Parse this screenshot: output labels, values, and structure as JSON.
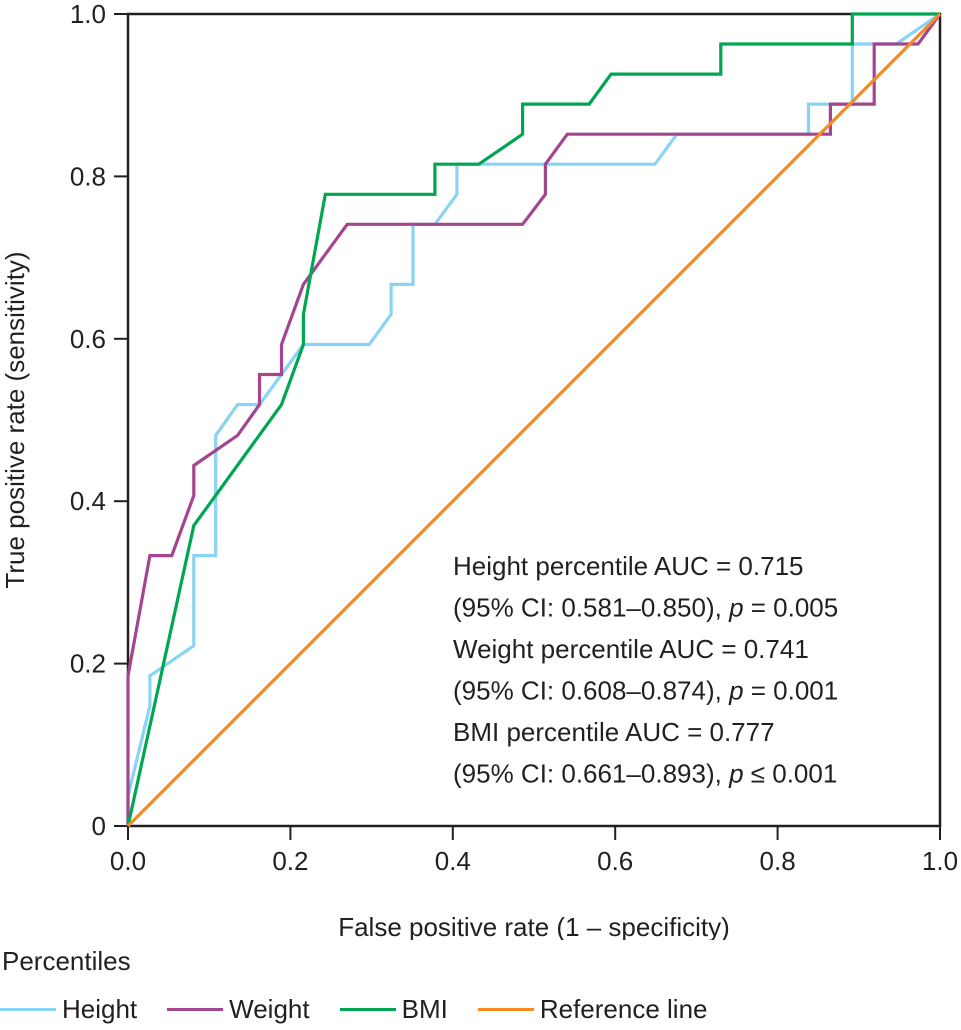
{
  "chart_data": {
    "type": "line",
    "title": "",
    "xlabel": "False positive rate (1 – specificity)",
    "ylabel": "True positive rate (sensitivity)",
    "xlim": [
      0,
      1
    ],
    "ylim": [
      0,
      1
    ],
    "grid": false,
    "x_ticks": [
      "0.0",
      "0.2",
      "0.4",
      "0.6",
      "0.8",
      "1.0"
    ],
    "x_tick_values": [
      0,
      0.2,
      0.4,
      0.6,
      0.8,
      1.0
    ],
    "y_ticks": [
      "0",
      "0.2",
      "0.4",
      "0.6",
      "0.8",
      "1.0"
    ],
    "y_tick_values": [
      0,
      0.2,
      0.4,
      0.6,
      0.8,
      1.0
    ],
    "legend_title": "Percentiles",
    "legend_position": "bottom",
    "series": [
      {
        "name": "Height",
        "color": "#89d3f3",
        "points": [
          [
            0,
            0
          ],
          [
            0,
            0.037
          ],
          [
            0.027,
            0.148
          ],
          [
            0.027,
            0.185
          ],
          [
            0.081,
            0.222
          ],
          [
            0.081,
            0.333
          ],
          [
            0.108,
            0.333
          ],
          [
            0.108,
            0.481
          ],
          [
            0.135,
            0.519
          ],
          [
            0.162,
            0.519
          ],
          [
            0.189,
            0.556
          ],
          [
            0.216,
            0.593
          ],
          [
            0.297,
            0.593
          ],
          [
            0.324,
            0.63
          ],
          [
            0.324,
            0.667
          ],
          [
            0.351,
            0.667
          ],
          [
            0.351,
            0.741
          ],
          [
            0.378,
            0.741
          ],
          [
            0.405,
            0.778
          ],
          [
            0.405,
            0.815
          ],
          [
            0.649,
            0.815
          ],
          [
            0.676,
            0.852
          ],
          [
            0.838,
            0.852
          ],
          [
            0.838,
            0.889
          ],
          [
            0.892,
            0.889
          ],
          [
            0.892,
            0.963
          ],
          [
            0.919,
            0.963
          ],
          [
            0.946,
            0.963
          ],
          [
            1,
            1
          ]
        ]
      },
      {
        "name": "Weight",
        "color": "#a3468f",
        "points": [
          [
            0,
            0
          ],
          [
            0,
            0.185
          ],
          [
            0.027,
            0.333
          ],
          [
            0.054,
            0.333
          ],
          [
            0.081,
            0.407
          ],
          [
            0.081,
            0.444
          ],
          [
            0.135,
            0.481
          ],
          [
            0.162,
            0.519
          ],
          [
            0.162,
            0.556
          ],
          [
            0.189,
            0.556
          ],
          [
            0.189,
            0.593
          ],
          [
            0.216,
            0.667
          ],
          [
            0.27,
            0.741
          ],
          [
            0.486,
            0.741
          ],
          [
            0.514,
            0.778
          ],
          [
            0.514,
            0.815
          ],
          [
            0.541,
            0.852
          ],
          [
            0.865,
            0.852
          ],
          [
            0.865,
            0.889
          ],
          [
            0.919,
            0.889
          ],
          [
            0.919,
            0.963
          ],
          [
            0.973,
            0.963
          ],
          [
            1,
            1
          ]
        ]
      },
      {
        "name": "BMI",
        "color": "#00a651",
        "points": [
          [
            0,
            0
          ],
          [
            0.081,
            0.37
          ],
          [
            0.189,
            0.519
          ],
          [
            0.216,
            0.593
          ],
          [
            0.216,
            0.63
          ],
          [
            0.243,
            0.778
          ],
          [
            0.378,
            0.778
          ],
          [
            0.378,
            0.815
          ],
          [
            0.432,
            0.815
          ],
          [
            0.486,
            0.852
          ],
          [
            0.486,
            0.889
          ],
          [
            0.568,
            0.889
          ],
          [
            0.595,
            0.926
          ],
          [
            0.73,
            0.926
          ],
          [
            0.73,
            0.963
          ],
          [
            0.892,
            0.963
          ],
          [
            0.892,
            1.0
          ],
          [
            1,
            1
          ]
        ]
      },
      {
        "name": "Reference line",
        "color": "#f7891f",
        "points": [
          [
            0,
            0
          ],
          [
            1,
            1
          ]
        ]
      }
    ],
    "annotations": [
      "Height percentile AUC = 0.715",
      "(95% CI: 0.581–0.850), p = 0.005",
      "Weight percentile AUC = 0.741",
      "(95% CI: 0.608–0.874), p = 0.001",
      "BMI percentile AUC = 0.777",
      "(95% CI: 0.661–0.893), p ≤ 0.001"
    ],
    "auc": [
      {
        "name": "Height percentile",
        "auc": 0.715,
        "ci_low": 0.581,
        "ci_high": 0.85,
        "p": "= 0.005"
      },
      {
        "name": "Weight percentile",
        "auc": 0.741,
        "ci_low": 0.608,
        "ci_high": 0.874,
        "p": "= 0.001"
      },
      {
        "name": "BMI percentile",
        "auc": 0.777,
        "ci_low": 0.661,
        "ci_high": 0.893,
        "p": "≤ 0.001"
      }
    ]
  },
  "annotation_lines": [
    {
      "pre": "Height percentile AUC = 0.715",
      "italic": "",
      "post": ""
    },
    {
      "pre": "(95% CI: 0.581–0.850), ",
      "italic": "p",
      "post": " = 0.005"
    },
    {
      "pre": "Weight percentile AUC = 0.741",
      "italic": "",
      "post": ""
    },
    {
      "pre": "(95% CI: 0.608–0.874), ",
      "italic": "p",
      "post": " = 0.001"
    },
    {
      "pre": "BMI percentile AUC = 0.777",
      "italic": "",
      "post": ""
    },
    {
      "pre": "(95% CI: 0.661–0.893), ",
      "italic": "p",
      "post": " ≤ 0.001"
    }
  ],
  "legend": {
    "title": "Percentiles",
    "items": [
      {
        "label": "Height",
        "color": "#89d3f3"
      },
      {
        "label": "Weight",
        "color": "#a3468f"
      },
      {
        "label": "BMI",
        "color": "#00a651"
      },
      {
        "label": "Reference line",
        "color": "#f7891f"
      }
    ]
  }
}
